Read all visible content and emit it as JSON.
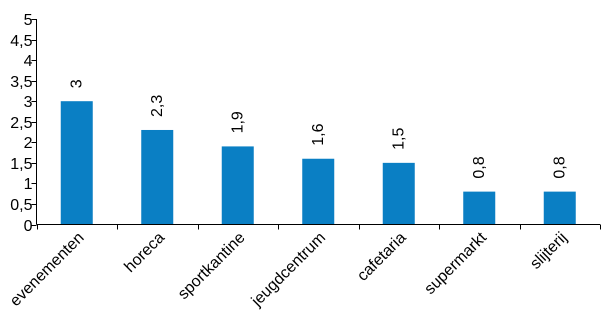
{
  "chart_data": {
    "type": "bar",
    "categories": [
      "evenementen",
      "horeca",
      "sportkantine",
      "jeugdcentrum",
      "cafetaria",
      "supermarkt",
      "slijterij"
    ],
    "values": [
      3,
      2.3,
      1.9,
      1.6,
      1.5,
      0.8,
      0.8
    ],
    "data_labels": [
      "3",
      "2,3",
      "1,9",
      "1,6",
      "1,5",
      "0,8",
      "0,8"
    ],
    "y_ticks": [
      0,
      0.5,
      1,
      1.5,
      2,
      2.5,
      3,
      3.5,
      4,
      4.5,
      5
    ],
    "y_tick_labels": [
      "0",
      "0,5",
      "1",
      "1,5",
      "2",
      "2,5",
      "3",
      "3,5",
      "4",
      "4,5",
      "5"
    ],
    "ylim": [
      0,
      5
    ],
    "grid": false,
    "legend": "none",
    "bar_color": "#0a7fc4",
    "title": "",
    "xlabel": "",
    "ylabel": ""
  }
}
